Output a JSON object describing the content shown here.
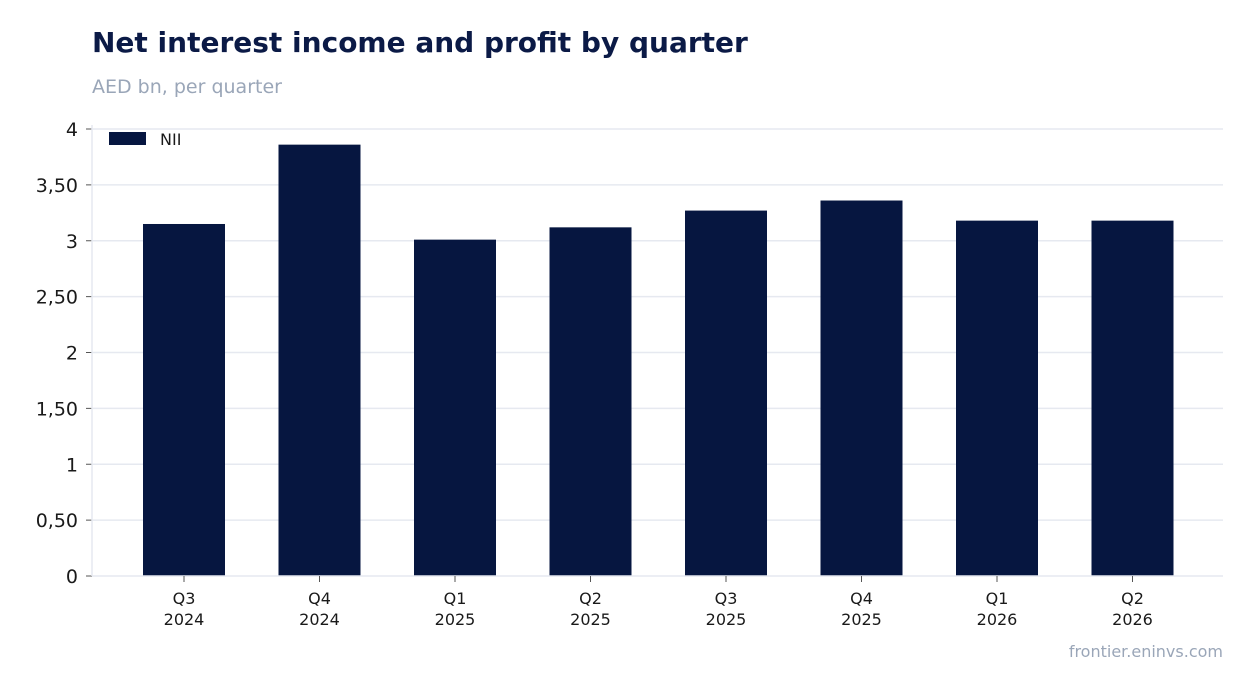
{
  "header": {
    "title": "Net interest income and profit by quarter",
    "subtitle": "AED bn, per quarter"
  },
  "footer": {
    "source": "frontier.eninvs.com"
  },
  "colors": {
    "bar": "#061640",
    "grid": "#e6e9f0",
    "axis_text": "#1a1a1a"
  },
  "chart_data": {
    "type": "bar",
    "title": "Net interest income and profit by quarter",
    "subtitle": "AED bn, per quarter",
    "xlabel": "",
    "ylabel": "",
    "categories": [
      [
        "Q3",
        "2024"
      ],
      [
        "Q4",
        "2024"
      ],
      [
        "Q1",
        "2025"
      ],
      [
        "Q2",
        "2025"
      ],
      [
        "Q3",
        "2025"
      ],
      [
        "Q4",
        "2025"
      ],
      [
        "Q1",
        "2026"
      ],
      [
        "Q2",
        "2026"
      ]
    ],
    "series": [
      {
        "name": "NII",
        "values": [
          3.15,
          3.86,
          3.01,
          3.12,
          3.27,
          3.36,
          3.18,
          3.18
        ]
      }
    ],
    "ylim": [
      0,
      4
    ],
    "yticks": [
      0,
      0.5,
      1,
      1.5,
      2,
      2.5,
      3,
      3.5,
      4
    ],
    "ytick_labels": [
      "0",
      "0,50",
      "1",
      "1,50",
      "2",
      "2,50",
      "3",
      "3,50",
      "4"
    ],
    "grid": true,
    "legend_position": "top-left"
  }
}
